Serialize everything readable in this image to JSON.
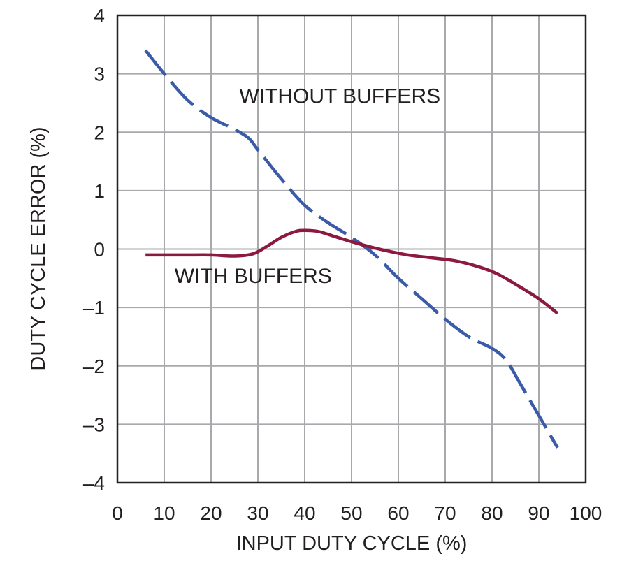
{
  "chart_data": {
    "type": "line",
    "title": "",
    "xlabel": "INPUT DUTY CYCLE (%)",
    "ylabel": "DUTY CYCLE ERROR (%)",
    "xlim": [
      0,
      100
    ],
    "ylim": [
      -4,
      4
    ],
    "x_ticks": [
      0,
      10,
      20,
      30,
      40,
      50,
      60,
      70,
      80,
      90,
      100
    ],
    "y_ticks": [
      4,
      3,
      2,
      1,
      0,
      -1,
      -2,
      -3,
      -4
    ],
    "x_tick_labels": [
      "0",
      "10",
      "20",
      "30",
      "40",
      "50",
      "60",
      "70",
      "80",
      "90",
      "100"
    ],
    "y_tick_labels": [
      "4",
      "3",
      "2",
      "1",
      "0",
      "–1",
      "–2",
      "–3",
      "–4"
    ],
    "grid": true,
    "legend": "none",
    "series": [
      {
        "name": "WITHOUT BUFFERS",
        "color": "#3a5ba8",
        "dash": "dashed",
        "points": [
          [
            6,
            3.4
          ],
          [
            10,
            3.0
          ],
          [
            15,
            2.55
          ],
          [
            20,
            2.25
          ],
          [
            25,
            2.05
          ],
          [
            28,
            1.9
          ],
          [
            30,
            1.7
          ],
          [
            35,
            1.2
          ],
          [
            40,
            0.75
          ],
          [
            45,
            0.45
          ],
          [
            50,
            0.2
          ],
          [
            55,
            -0.1
          ],
          [
            60,
            -0.5
          ],
          [
            65,
            -0.85
          ],
          [
            70,
            -1.2
          ],
          [
            75,
            -1.5
          ],
          [
            80,
            -1.7
          ],
          [
            83,
            -1.9
          ],
          [
            86,
            -2.3
          ],
          [
            90,
            -2.85
          ],
          [
            94,
            -3.4
          ]
        ]
      },
      {
        "name": "WITH BUFFERS",
        "color": "#8b1a3e",
        "dash": "solid",
        "points": [
          [
            6,
            -0.1
          ],
          [
            10,
            -0.1
          ],
          [
            15,
            -0.1
          ],
          [
            20,
            -0.1
          ],
          [
            25,
            -0.12
          ],
          [
            29,
            -0.08
          ],
          [
            32,
            0.05
          ],
          [
            35,
            0.2
          ],
          [
            38,
            0.3
          ],
          [
            40,
            0.32
          ],
          [
            43,
            0.3
          ],
          [
            47,
            0.2
          ],
          [
            52,
            0.08
          ],
          [
            57,
            -0.02
          ],
          [
            62,
            -0.1
          ],
          [
            67,
            -0.15
          ],
          [
            72,
            -0.2
          ],
          [
            77,
            -0.3
          ],
          [
            81,
            -0.42
          ],
          [
            85,
            -0.6
          ],
          [
            90,
            -0.85
          ],
          [
            94,
            -1.1
          ]
        ]
      }
    ],
    "annotations": [
      {
        "text": "WITHOUT BUFFERS",
        "x": 47.5,
        "y": 2.5
      },
      {
        "text": "WITH BUFFERS",
        "x": 29,
        "y": -0.58
      }
    ]
  }
}
